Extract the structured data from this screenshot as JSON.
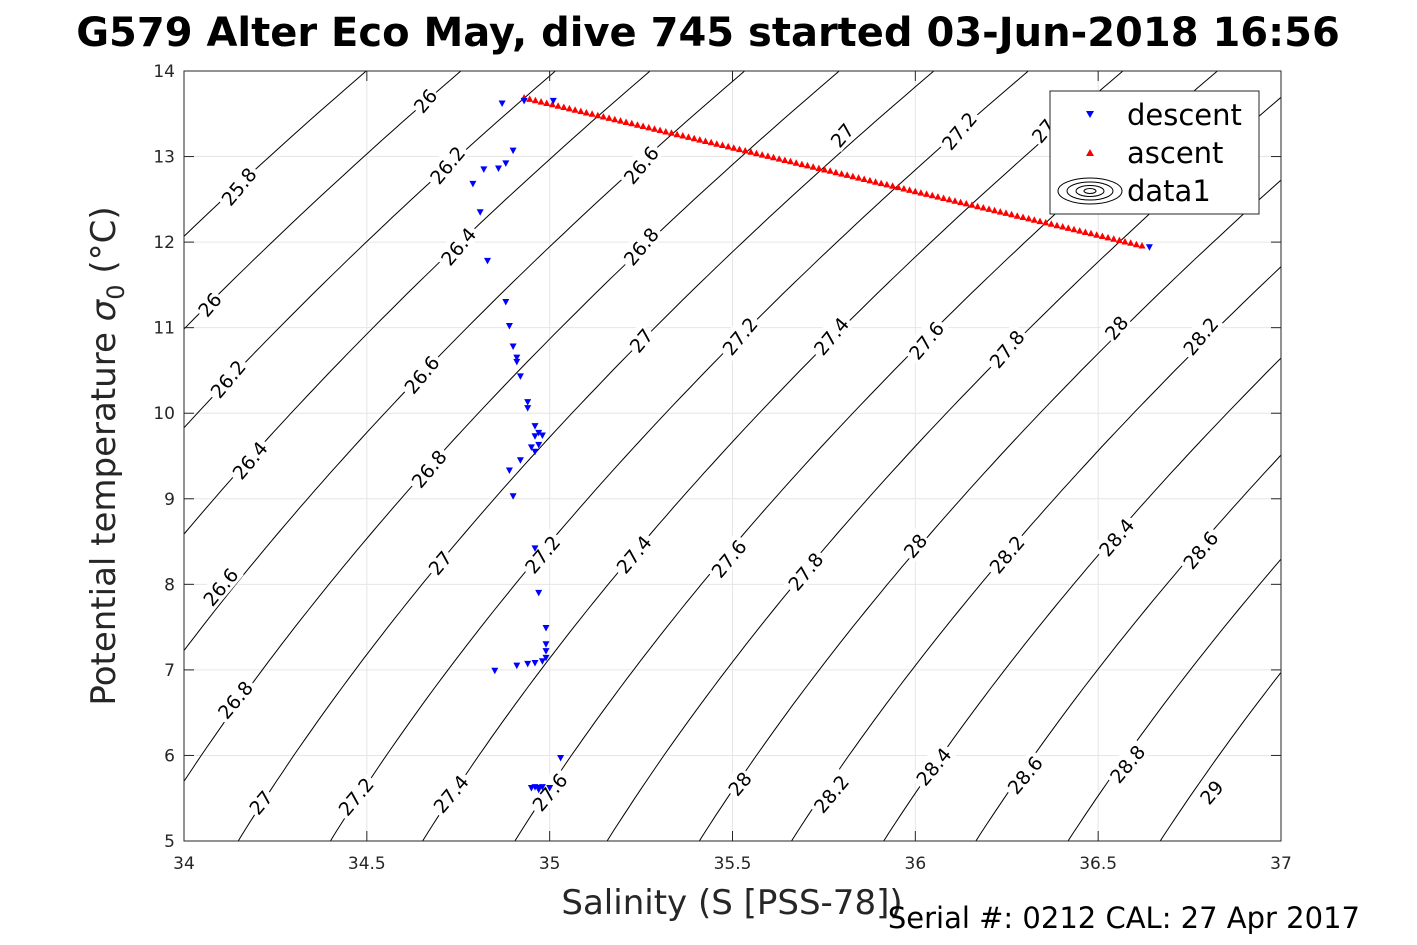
{
  "chart_data": {
    "type": "scatter",
    "title": "G579 Alter Eco May, dive 745 started 03-Jun-2018 16:56",
    "xlabel": "Salinity (S [PSS-78])",
    "ylabel_main": "Potential temperature ",
    "ylabel_sigma": "σ",
    "ylabel_sub": "0",
    "ylabel_unit": " (°C)",
    "xlim": [
      34,
      37
    ],
    "ylim": [
      5,
      14
    ],
    "xticks": [
      34,
      34.5,
      35,
      35.5,
      36,
      36.5,
      37
    ],
    "xtick_labels": [
      "34",
      "34.5",
      "35",
      "35.5",
      "36",
      "36.5",
      "37"
    ],
    "yticks": [
      5,
      6,
      7,
      8,
      9,
      10,
      11,
      12,
      13,
      14
    ],
    "ytick_labels": [
      "5",
      "6",
      "7",
      "8",
      "9",
      "10",
      "11",
      "12",
      "13",
      "14"
    ],
    "grid": true,
    "legend_position": "top-right",
    "footer": "Serial #: 0212  CAL: 27 Apr 2017",
    "colors": {
      "descent": "#0000ff",
      "ascent": "#ff0000",
      "contour": "#000000",
      "grid": "#e6e6e6"
    },
    "series": [
      {
        "name": "descent",
        "marker": "triangle-down",
        "points": [
          [
            34.87,
            13.62
          ],
          [
            34.93,
            13.65
          ],
          [
            35.01,
            13.65
          ],
          [
            34.9,
            13.07
          ],
          [
            34.88,
            12.92
          ],
          [
            34.86,
            12.86
          ],
          [
            34.82,
            12.85
          ],
          [
            34.79,
            12.68
          ],
          [
            34.81,
            12.35
          ],
          [
            34.83,
            11.78
          ],
          [
            34.88,
            11.3
          ],
          [
            34.89,
            11.02
          ],
          [
            34.9,
            10.78
          ],
          [
            34.91,
            10.65
          ],
          [
            34.91,
            10.6
          ],
          [
            34.92,
            10.43
          ],
          [
            34.94,
            10.13
          ],
          [
            34.94,
            10.06
          ],
          [
            34.96,
            9.85
          ],
          [
            34.97,
            9.77
          ],
          [
            34.96,
            9.73
          ],
          [
            34.98,
            9.74
          ],
          [
            34.97,
            9.63
          ],
          [
            34.95,
            9.6
          ],
          [
            34.96,
            9.55
          ],
          [
            34.92,
            9.45
          ],
          [
            34.89,
            9.33
          ],
          [
            34.9,
            9.03
          ],
          [
            34.96,
            8.42
          ],
          [
            34.97,
            7.9
          ],
          [
            34.99,
            7.49
          ],
          [
            34.99,
            7.3
          ],
          [
            34.99,
            7.22
          ],
          [
            34.99,
            7.14
          ],
          [
            34.98,
            7.1
          ],
          [
            34.96,
            7.08
          ],
          [
            34.94,
            7.07
          ],
          [
            34.91,
            7.05
          ],
          [
            34.85,
            6.99
          ],
          [
            35.03,
            5.97
          ],
          [
            34.95,
            5.62
          ],
          [
            34.96,
            5.63
          ],
          [
            34.97,
            5.62
          ],
          [
            34.98,
            5.63
          ],
          [
            35.0,
            5.62
          ],
          [
            34.97,
            5.6
          ],
          [
            36.64,
            11.94
          ]
        ]
      },
      {
        "name": "ascent",
        "marker": "triangle-up",
        "line_start": [
          34.93,
          13.69
        ],
        "line_end": [
          36.62,
          11.96
        ],
        "count": 110
      },
      {
        "name": "data1",
        "marker": "contour"
      }
    ],
    "contours": {
      "levels": [
        25.8,
        26.0,
        26.2,
        26.4,
        26.6,
        26.8,
        27.0,
        27.2,
        27.4,
        27.6,
        27.8,
        28.0,
        28.2,
        28.4,
        28.6,
        28.8,
        29.0
      ],
      "labels": [
        {
          "text": "25.8",
          "s": 34.15,
          "t": 12.65
        },
        {
          "text": "26",
          "s": 34.66,
          "t": 13.65
        },
        {
          "text": "26.2",
          "s": 34.72,
          "t": 12.9
        },
        {
          "text": "26.4",
          "s": 34.75,
          "t": 11.95
        },
        {
          "text": "26.6",
          "s": 35.25,
          "t": 12.9
        },
        {
          "text": "26.8",
          "s": 35.25,
          "t": 11.95
        },
        {
          "text": "27",
          "s": 35.8,
          "t": 13.25
        },
        {
          "text": "27.2",
          "s": 36.12,
          "t": 13.3
        },
        {
          "text": "27",
          "s": 36.35,
          "t": 13.3
        },
        {
          "text": "26",
          "s": 34.07,
          "t": 11.27
        },
        {
          "text": "26.2",
          "s": 34.12,
          "t": 10.4
        },
        {
          "text": "26.6",
          "s": 34.65,
          "t": 10.45
        },
        {
          "text": "27",
          "s": 35.25,
          "t": 10.85
        },
        {
          "text": "27.2",
          "s": 35.52,
          "t": 10.9
        },
        {
          "text": "27.4",
          "s": 35.77,
          "t": 10.9
        },
        {
          "text": "27.6",
          "s": 36.03,
          "t": 10.85
        },
        {
          "text": "27.8",
          "s": 36.25,
          "t": 10.75
        },
        {
          "text": "28",
          "s": 36.55,
          "t": 11.0
        },
        {
          "text": "28.2",
          "s": 36.78,
          "t": 10.9
        },
        {
          "text": "26.4",
          "s": 34.18,
          "t": 9.45
        },
        {
          "text": "26.8",
          "s": 34.67,
          "t": 9.35
        },
        {
          "text": "26.6",
          "s": 34.1,
          "t": 7.97
        },
        {
          "text": "27",
          "s": 34.7,
          "t": 8.25
        },
        {
          "text": "27.2",
          "s": 34.98,
          "t": 8.35
        },
        {
          "text": "27.4",
          "s": 35.23,
          "t": 8.35
        },
        {
          "text": "27.6",
          "s": 35.49,
          "t": 8.3
        },
        {
          "text": "27.8",
          "s": 35.7,
          "t": 8.15
        },
        {
          "text": "28",
          "s": 36.0,
          "t": 8.45
        },
        {
          "text": "28.2",
          "s": 36.25,
          "t": 8.35
        },
        {
          "text": "28.4",
          "s": 36.55,
          "t": 8.55
        },
        {
          "text": "28.6",
          "s": 36.78,
          "t": 8.4
        },
        {
          "text": "26.8",
          "s": 34.14,
          "t": 6.65
        },
        {
          "text": "27",
          "s": 34.21,
          "t": 5.45
        },
        {
          "text": "27.2",
          "s": 34.47,
          "t": 5.52
        },
        {
          "text": "27.4",
          "s": 34.73,
          "t": 5.55
        },
        {
          "text": "27.6",
          "s": 35.0,
          "t": 5.57
        },
        {
          "text": "28",
          "s": 35.52,
          "t": 5.67
        },
        {
          "text": "28.2",
          "s": 35.77,
          "t": 5.55
        },
        {
          "text": "28.4",
          "s": 36.05,
          "t": 5.87
        },
        {
          "text": "28.6",
          "s": 36.3,
          "t": 5.77
        },
        {
          "text": "28.8",
          "s": 36.58,
          "t": 5.9
        },
        {
          "text": "29",
          "s": 36.81,
          "t": 5.57
        }
      ]
    }
  }
}
